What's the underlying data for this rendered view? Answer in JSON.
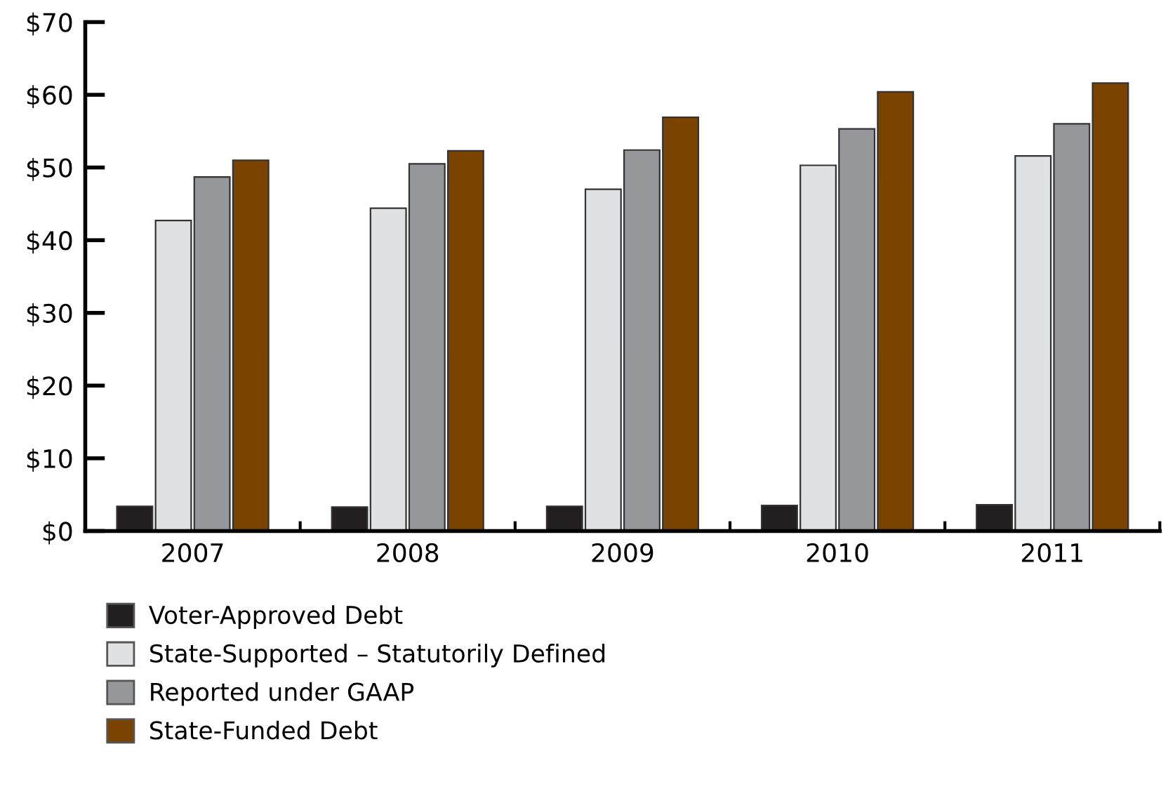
{
  "chart_data": {
    "type": "bar",
    "categories": [
      "2007",
      "2008",
      "2009",
      "2010",
      "2011"
    ],
    "series": [
      {
        "name": "Voter-Approved Debt",
        "color": "#231f20",
        "values": [
          3.4,
          3.3,
          3.4,
          3.5,
          3.6
        ]
      },
      {
        "name": "State-Supported – Statutorily Defined",
        "color": "#e0e1e3",
        "values": [
          42.7,
          44.4,
          47.0,
          50.3,
          51.6
        ]
      },
      {
        "name": "Reported under GAAP",
        "color": "#96979b",
        "values": [
          48.7,
          50.5,
          52.4,
          55.3,
          56.0
        ]
      },
      {
        "name": "State-Funded Debt",
        "color": "#7a4300",
        "values": [
          51.0,
          52.3,
          56.9,
          60.4,
          61.6
        ]
      }
    ],
    "ylim": [
      0,
      70
    ],
    "yticks": [
      {
        "value": 0,
        "label": "$0"
      },
      {
        "value": 10,
        "label": "$10"
      },
      {
        "value": 20,
        "label": "$20"
      },
      {
        "value": 30,
        "label": "$30"
      },
      {
        "value": 40,
        "label": "$40"
      },
      {
        "value": 50,
        "label": "$50"
      },
      {
        "value": 60,
        "label": "$60"
      },
      {
        "value": 70,
        "label": "$70"
      }
    ],
    "grid": false,
    "legend": "bottom left"
  }
}
